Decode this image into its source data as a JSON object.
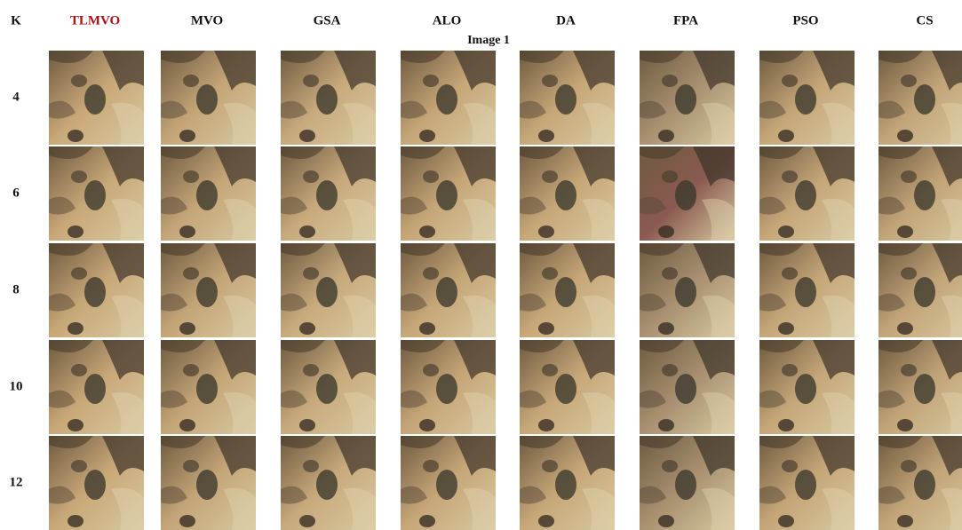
{
  "header": {
    "corner": "K",
    "methods": [
      "TLMVO",
      "MVO",
      "GSA",
      "ALO",
      "DA",
      "FPA",
      "PSO",
      "CS"
    ]
  },
  "subtitle": "Image 1",
  "rows": [
    {
      "k": 4
    },
    {
      "k": 6
    },
    {
      "k": 8
    },
    {
      "k": 10
    },
    {
      "k": 12
    }
  ]
}
